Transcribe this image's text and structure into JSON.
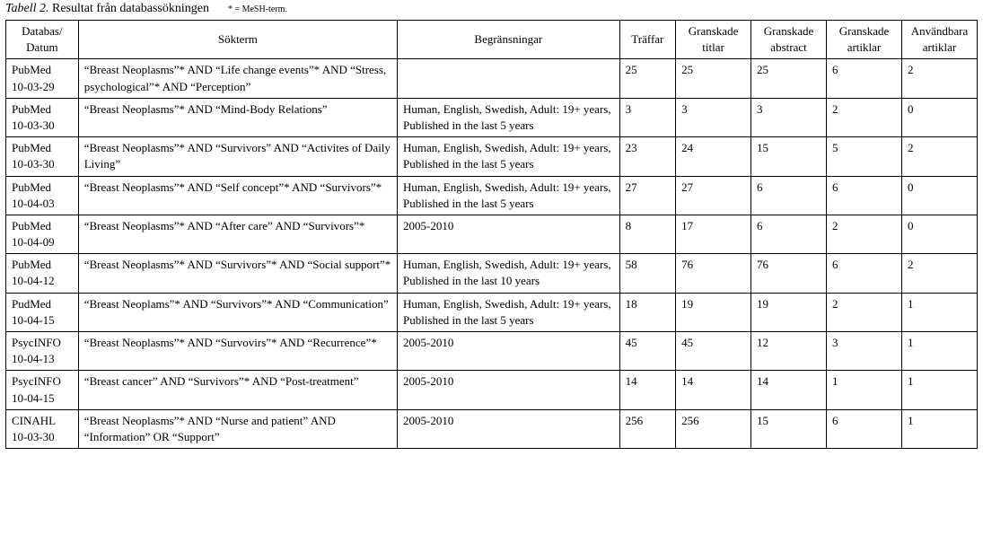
{
  "caption": {
    "prefix_italic": "Tabell 2.",
    "text": " Resultat från databassökningen",
    "suffix_mesh": "* = MeSH-term."
  },
  "columns": [
    "Databas/\nDatum",
    "Sökterm",
    "Begränsningar",
    "Träffar",
    "Granskade titlar",
    "Granskade abstract",
    "Granskade artiklar",
    "Användbara artiklar"
  ],
  "rows": [
    {
      "db": "PubMed\n10-03-29",
      "term": "“Breast Neoplasms”* AND “Life change events”* AND “Stress, psychological”* AND “Perception”",
      "lim": "",
      "hits": "25",
      "titles": "25",
      "abs": "25",
      "art": "6",
      "use": "2"
    },
    {
      "db": "PubMed\n10-03-30",
      "term": "“Breast Neoplasms”* AND “Mind-Body Relations”",
      "lim": "Human, English, Swedish, Adult: 19+ years, Published in the last 5 years",
      "hits": "3",
      "titles": "3",
      "abs": "3",
      "art": "2",
      "use": "0"
    },
    {
      "db": "PubMed\n10-03-30",
      "term": "“Breast Neoplasms”* AND “Survivors” AND “Activites of Daily Living”",
      "lim": "Human, English, Swedish, Adult: 19+ years, Published in the last 5 years",
      "hits": "23",
      "titles": "24",
      "abs": "15",
      "art": "5",
      "use": "2"
    },
    {
      "db": "PubMed\n10-04-03",
      "term": "“Breast Neoplasms”* AND “Self concept”* AND “Survivors”*",
      "lim": "Human, English, Swedish, Adult: 19+ years, Published in the last 5 years",
      "hits": "27",
      "titles": "27",
      "abs": "6",
      "art": "6",
      "use": "0"
    },
    {
      "db": "PubMed\n10-04-09",
      "term": "“Breast Neoplasms”* AND “After care” AND “Survivors”*",
      "lim": "2005-2010",
      "hits": "8",
      "titles": "17",
      "abs": "6",
      "art": "2",
      "use": "0"
    },
    {
      "db": "PubMed\n10-04-12",
      "term": "“Breast Neoplasms”* AND “Survivors”* AND “Social support”*",
      "lim": "Human, English, Swedish, Adult: 19+ years, Published in the last 10 years",
      "hits": "58",
      "titles": "76",
      "abs": "76",
      "art": "6",
      "use": "2"
    },
    {
      "db": "PudMed\n10-04-15",
      "term": "“Breast Neoplams”* AND “Survivors”* AND “Communication”",
      "lim": "Human, English, Swedish, Adult: 19+ years, Published in the last 5 years",
      "hits": "18",
      "titles": "19",
      "abs": "19",
      "art": "2",
      "use": "1"
    },
    {
      "db": "PsycINFO\n10-04-13",
      "term": "“Breast Neoplasms”* AND “Survovirs”* AND “Recurrence”*",
      "lim": "2005-2010",
      "hits": "45",
      "titles": "45",
      "abs": "12",
      "art": "3",
      "use": "1"
    },
    {
      "db": "PsycINFO\n10-04-15",
      "term": "“Breast cancer” AND “Survivors”* AND “Post-treatment”",
      "lim": "2005-2010",
      "hits": "14",
      "titles": "14",
      "abs": "14",
      "art": "1",
      "use": "1"
    },
    {
      "db": "CINAHL\n10-03-30",
      "term": "“Breast Neoplasms”* AND “Nurse and patient” AND “Information” OR “Support”",
      "lim": "2005-2010",
      "hits": "256",
      "titles": "256",
      "abs": "15",
      "art": "6",
      "use": "1"
    }
  ]
}
